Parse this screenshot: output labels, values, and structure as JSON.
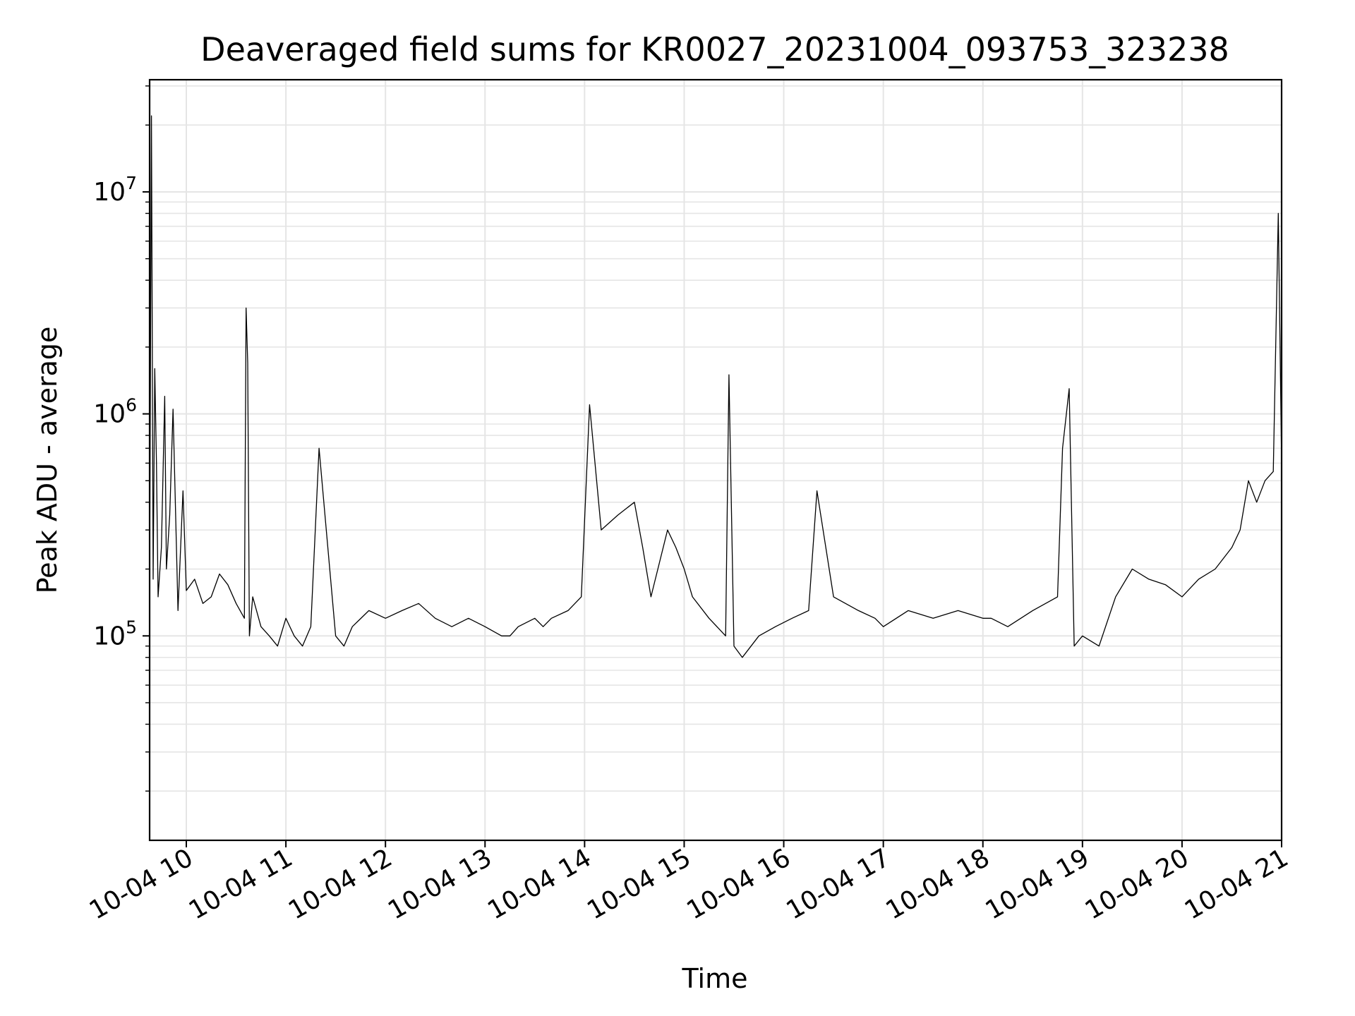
{
  "chart_data": {
    "type": "line",
    "title": "Deaveraged field sums for KR0027_20231004_093753_323238",
    "xlabel": "Time",
    "ylabel": "Peak ADU - average",
    "y_scale": "log",
    "ylim": [
      12000,
      32000000
    ],
    "xlim": [
      "2023-10-04T09:37:53",
      "2023-10-04T21:00:00"
    ],
    "grid": true,
    "line_color": "#000000",
    "grid_color": "#e5e5e5",
    "x_ticks": [
      {
        "value": "2023-10-04T10:00:00",
        "label": "10-04 10"
      },
      {
        "value": "2023-10-04T11:00:00",
        "label": "10-04 11"
      },
      {
        "value": "2023-10-04T12:00:00",
        "label": "10-04 12"
      },
      {
        "value": "2023-10-04T13:00:00",
        "label": "10-04 13"
      },
      {
        "value": "2023-10-04T14:00:00",
        "label": "10-04 14"
      },
      {
        "value": "2023-10-04T15:00:00",
        "label": "10-04 15"
      },
      {
        "value": "2023-10-04T16:00:00",
        "label": "10-04 16"
      },
      {
        "value": "2023-10-04T17:00:00",
        "label": "10-04 17"
      },
      {
        "value": "2023-10-04T18:00:00",
        "label": "10-04 18"
      },
      {
        "value": "2023-10-04T19:00:00",
        "label": "10-04 19"
      },
      {
        "value": "2023-10-04T20:00:00",
        "label": "10-04 20"
      },
      {
        "value": "2023-10-04T21:00:00",
        "label": "10-04 21"
      }
    ],
    "y_ticks": [
      {
        "value": 100000,
        "base": "10",
        "exp": "5"
      },
      {
        "value": 1000000,
        "base": "10",
        "exp": "6"
      },
      {
        "value": 10000000,
        "base": "10",
        "exp": "7"
      }
    ],
    "series": [
      {
        "x": [
          "2023-10-04T09:38:00",
          "2023-10-04T09:39:00",
          "2023-10-04T09:40:00",
          "2023-10-04T09:41:00",
          "2023-10-04T09:42:00",
          "2023-10-04T09:43:00",
          "2023-10-04T09:45:00",
          "2023-10-04T09:47:00",
          "2023-10-04T09:48:00",
          "2023-10-04T09:50:00",
          "2023-10-04T09:52:00",
          "2023-10-04T09:55:00",
          "2023-10-04T09:58:00",
          "2023-10-04T10:00:00",
          "2023-10-04T10:05:00",
          "2023-10-04T10:10:00",
          "2023-10-04T10:15:00",
          "2023-10-04T10:20:00",
          "2023-10-04T10:25:00",
          "2023-10-04T10:30:00",
          "2023-10-04T10:35:00",
          "2023-10-04T10:36:00",
          "2023-10-04T10:37:00",
          "2023-10-04T10:38:00",
          "2023-10-04T10:40:00",
          "2023-10-04T10:45:00",
          "2023-10-04T10:50:00",
          "2023-10-04T10:55:00",
          "2023-10-04T11:00:00",
          "2023-10-04T11:05:00",
          "2023-10-04T11:10:00",
          "2023-10-04T11:15:00",
          "2023-10-04T11:20:00",
          "2023-10-04T11:30:00",
          "2023-10-04T11:35:00",
          "2023-10-04T11:40:00",
          "2023-10-04T11:50:00",
          "2023-10-04T12:00:00",
          "2023-10-04T12:10:00",
          "2023-10-04T12:20:00",
          "2023-10-04T12:30:00",
          "2023-10-04T12:40:00",
          "2023-10-04T12:50:00",
          "2023-10-04T13:00:00",
          "2023-10-04T13:10:00",
          "2023-10-04T13:15:00",
          "2023-10-04T13:20:00",
          "2023-10-04T13:30:00",
          "2023-10-04T13:35:00",
          "2023-10-04T13:40:00",
          "2023-10-04T13:50:00",
          "2023-10-04T13:58:00",
          "2023-10-04T14:03:00",
          "2023-10-04T14:10:00",
          "2023-10-04T14:20:00",
          "2023-10-04T14:30:00",
          "2023-10-04T14:35:00",
          "2023-10-04T14:40:00",
          "2023-10-04T14:50:00",
          "2023-10-04T14:55:00",
          "2023-10-04T15:00:00",
          "2023-10-04T15:05:00",
          "2023-10-04T15:15:00",
          "2023-10-04T15:25:00",
          "2023-10-04T15:27:00",
          "2023-10-04T15:30:00",
          "2023-10-04T15:35:00",
          "2023-10-04T15:45:00",
          "2023-10-04T15:55:00",
          "2023-10-04T16:05:00",
          "2023-10-04T16:15:00",
          "2023-10-04T16:20:00",
          "2023-10-04T16:30:00",
          "2023-10-04T16:45:00",
          "2023-10-04T16:55:00",
          "2023-10-04T17:00:00",
          "2023-10-04T17:15:00",
          "2023-10-04T17:30:00",
          "2023-10-04T17:45:00",
          "2023-10-04T18:00:00",
          "2023-10-04T18:05:00",
          "2023-10-04T18:15:00",
          "2023-10-04T18:30:00",
          "2023-10-04T18:45:00",
          "2023-10-04T18:48:00",
          "2023-10-04T18:52:00",
          "2023-10-04T18:55:00",
          "2023-10-04T19:00:00",
          "2023-10-04T19:10:00",
          "2023-10-04T19:20:00",
          "2023-10-04T19:30:00",
          "2023-10-04T19:40:00",
          "2023-10-04T19:50:00",
          "2023-10-04T20:00:00",
          "2023-10-04T20:10:00",
          "2023-10-04T20:20:00",
          "2023-10-04T20:30:00",
          "2023-10-04T20:35:00",
          "2023-10-04T20:40:00",
          "2023-10-04T20:45:00",
          "2023-10-04T20:50:00",
          "2023-10-04T20:55:00",
          "2023-10-04T20:58:00",
          "2023-10-04T21:00:00"
        ],
        "y": [
          300000,
          22000000,
          180000,
          1600000,
          600000,
          150000,
          250000,
          1200000,
          200000,
          350000,
          1050000,
          130000,
          450000,
          160000,
          180000,
          140000,
          150000,
          190000,
          170000,
          140000,
          120000,
          3000000,
          1700000,
          100000,
          150000,
          110000,
          100000,
          90000,
          120000,
          100000,
          90000,
          110000,
          700000,
          100000,
          90000,
          110000,
          130000,
          120000,
          130000,
          140000,
          120000,
          110000,
          120000,
          110000,
          100000,
          100000,
          110000,
          120000,
          110000,
          120000,
          130000,
          150000,
          1100000,
          300000,
          350000,
          400000,
          250000,
          150000,
          300000,
          250000,
          200000,
          150000,
          120000,
          100000,
          1500000,
          90000,
          80000,
          100000,
          110000,
          120000,
          130000,
          450000,
          150000,
          130000,
          120000,
          110000,
          130000,
          120000,
          130000,
          120000,
          120000,
          110000,
          130000,
          150000,
          700000,
          1300000,
          90000,
          100000,
          90000,
          150000,
          200000,
          180000,
          170000,
          150000,
          180000,
          200000,
          250000,
          300000,
          500000,
          400000,
          500000,
          550000,
          8000000,
          600000
        ],
        "color": "#000000"
      }
    ]
  }
}
